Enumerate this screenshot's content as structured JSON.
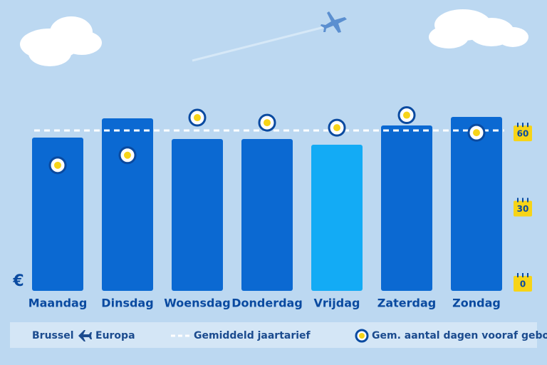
{
  "chart_data": {
    "type": "bar",
    "categories": [
      "Maandag",
      "Dinsdag",
      "Woensdag",
      "Donderdag",
      "Vrijdag",
      "Zaterdag",
      "Zondag"
    ],
    "values": [
      215,
      242,
      213,
      213,
      205,
      232,
      244
    ],
    "colors": [
      "#0b69d2",
      "#0b69d2",
      "#0b69d2",
      "#0b69d2",
      "#13abf5",
      "#0b69d2",
      "#0b69d2"
    ],
    "ylabel": "€",
    "ylim": [
      0,
      250
    ],
    "average": {
      "name": "Gemiddeld jaartarief",
      "value": 225,
      "color": "#ffffff"
    },
    "days_booked": {
      "name": "Gem. aantal dagen vooraf geboekt",
      "values": [
        47,
        51,
        66,
        64,
        62,
        67,
        60
      ],
      "axis": "y2",
      "color": "#f7d417"
    },
    "y2lim": [
      0,
      70
    ],
    "y2ticks": [
      0,
      30,
      60
    ],
    "route": {
      "from": "Brussel",
      "to": "Europa"
    }
  }
}
